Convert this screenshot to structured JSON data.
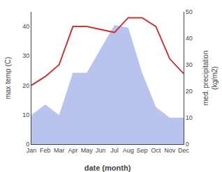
{
  "chart_data": {
    "type": "line",
    "categories": [
      "Jan",
      "Feb",
      "Mar",
      "Apr",
      "May",
      "Jun",
      "Jul",
      "Aug",
      "Sep",
      "Oct",
      "Nov",
      "Dec"
    ],
    "series": [
      {
        "type": "area",
        "color": "#b8c4ee",
        "axis": "y2",
        "values": [
          11,
          15,
          11,
          27,
          27,
          36,
          45,
          44,
          27,
          14,
          10,
          10
        ]
      },
      {
        "type": "line",
        "color": "#cc3333",
        "values": [
          20,
          23,
          27,
          40,
          40,
          39,
          38,
          43,
          43,
          40,
          29,
          24
        ]
      }
    ],
    "xlabel": "date (month)",
    "ylabel": "max temp (C)",
    "y2label": "med. precipitation\n(kg/m2)",
    "ylim": [
      0,
      45
    ],
    "yticks": [
      0,
      10,
      20,
      30,
      40
    ],
    "y2lim": [
      0,
      50
    ],
    "y2ticks": [
      0,
      10,
      20,
      30,
      40,
      50
    ],
    "grid": false
  }
}
